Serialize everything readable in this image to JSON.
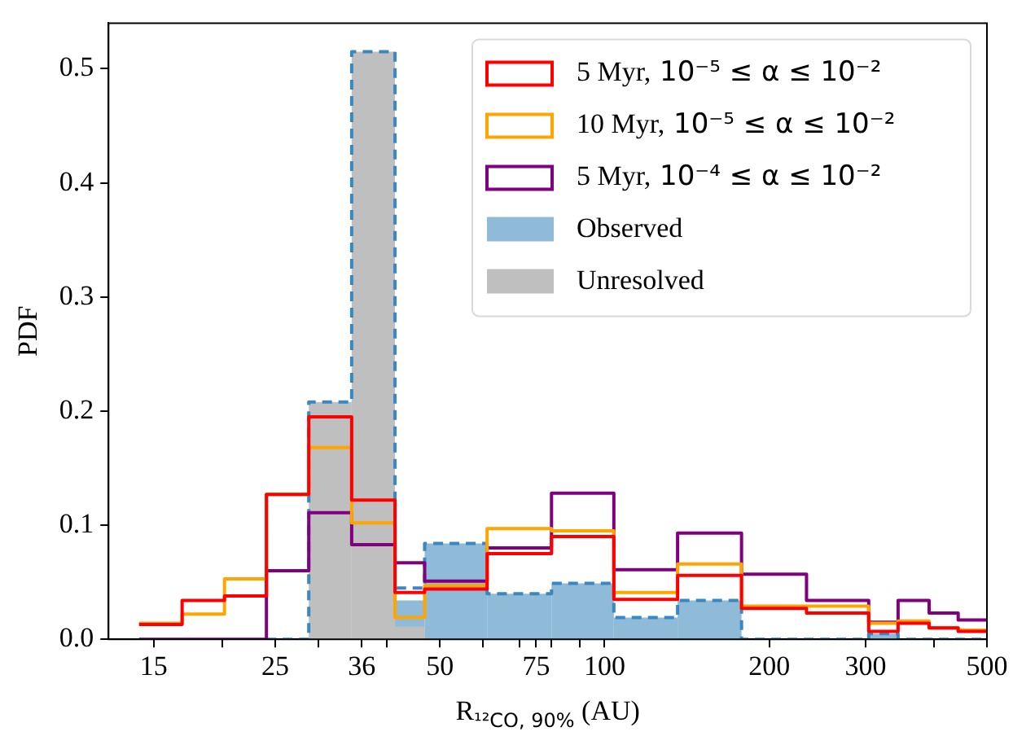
{
  "chart_data": {
    "type": "histogram",
    "xlabel": "R$_{¹²CO, 90%}$ (AU)",
    "ylabel": "PDF",
    "log": "x",
    "xlim": [
      12.4,
      500
    ],
    "ylim": [
      0,
      0.54
    ],
    "xticks": [
      15,
      {
        "value": 20,
        "label": null
      },
      25,
      {
        "value": 30,
        "label": null
      },
      36,
      {
        "value": 40,
        "label": null
      },
      50,
      {
        "value": 60,
        "label": null
      },
      {
        "value": 70,
        "label": null
      },
      75,
      {
        "value": 80,
        "label": null
      },
      {
        "value": 90,
        "label": null
      },
      100,
      200,
      300,
      {
        "value": 400,
        "label": null
      },
      500
    ],
    "yticks": [
      {
        "value": 0,
        "label": "0.0"
      },
      {
        "value": 0.1,
        "label": "0.1"
      },
      {
        "value": 0.2,
        "label": "0.2"
      },
      {
        "value": 0.3,
        "label": "0.3"
      },
      {
        "value": 0.4,
        "label": "0.4"
      },
      {
        "value": 0.5,
        "label": "0.5"
      }
    ],
    "grid": false,
    "legend": "top right",
    "bins": [
      28.8,
      34.5,
      41.4,
      46.9,
      61,
      80,
      104,
      136,
      178,
      304,
      344
    ],
    "series": [
      {
        "name": "5 Myr, 10⁻⁵ ≤ α ≤ 10⁻²",
        "type": "step",
        "color": "#ff0000",
        "x": [
          14.1,
          16.9,
          20.2,
          24.1,
          28.8,
          34.5,
          41.4,
          46.9,
          61,
          80,
          104,
          136,
          178,
          234,
          304,
          344,
          392,
          443,
          500
        ],
        "values": [
          0.013,
          0.034,
          0.038,
          0.127,
          0.195,
          0.122,
          0.041,
          0.044,
          0.075,
          0.09,
          0.035,
          0.056,
          0.027,
          0.023,
          0.007,
          0.014,
          0.01,
          0.007,
          0.007
        ]
      },
      {
        "name": "10 Myr, 10⁻⁵ ≤ α ≤ 10⁻²",
        "type": "step",
        "color": "#ffa500",
        "x": [
          14.1,
          16.9,
          20.2,
          24.1,
          28.8,
          34.5,
          41.4,
          46.9,
          61,
          80,
          104,
          136,
          178,
          234,
          304,
          344,
          392,
          443,
          500
        ],
        "values": [
          0.014,
          0.022,
          0.053,
          0.127,
          0.168,
          0.102,
          0.019,
          0.047,
          0.097,
          0.095,
          0.041,
          0.066,
          0.029,
          0.029,
          0.014,
          0.016,
          0.01,
          0.008,
          0.008
        ]
      },
      {
        "name": "5 Myr, 10⁻⁴ ≤ α ≤ 10⁻²",
        "type": "step",
        "color": "#800080",
        "x": [
          14.1,
          16.9,
          20.2,
          24.1,
          28.8,
          34.5,
          41.4,
          46.9,
          61,
          80,
          104,
          136,
          178,
          234,
          304,
          344,
          392,
          443,
          500
        ],
        "values": [
          0,
          0,
          0,
          0.06,
          0.111,
          0.083,
          0.067,
          0.051,
          0.08,
          0.128,
          0.061,
          0.093,
          0.057,
          0.034,
          0.015,
          0.034,
          0.023,
          0.017,
          0.017
        ]
      },
      {
        "name": "Observed",
        "type": "histogram",
        "color": "#8fbbd9",
        "values": [
          null,
          null,
          0.034,
          0.084,
          0.04,
          0.049,
          0.019,
          0.034,
          null,
          0.005
        ]
      },
      {
        "name": "Unresolved",
        "type": "histogram",
        "color": "#bfbfbf",
        "values": [
          0.208,
          0.515,
          0.011,
          null,
          null,
          null,
          null,
          null,
          null,
          null
        ]
      },
      {
        "type": "step",
        "color": "#3a87c2",
        "line_style": "dashed",
        "x": [
          24.1,
          28.8,
          34.5,
          41.4,
          46.9,
          61,
          80,
          104,
          136,
          178,
          234,
          304,
          344,
          392,
          443,
          500
        ],
        "values": [
          0,
          0.208,
          0.515,
          0.045,
          0.084,
          0.04,
          0.049,
          0.019,
          0.034,
          0,
          0,
          0.005,
          0,
          0,
          0,
          0
        ]
      }
    ]
  }
}
